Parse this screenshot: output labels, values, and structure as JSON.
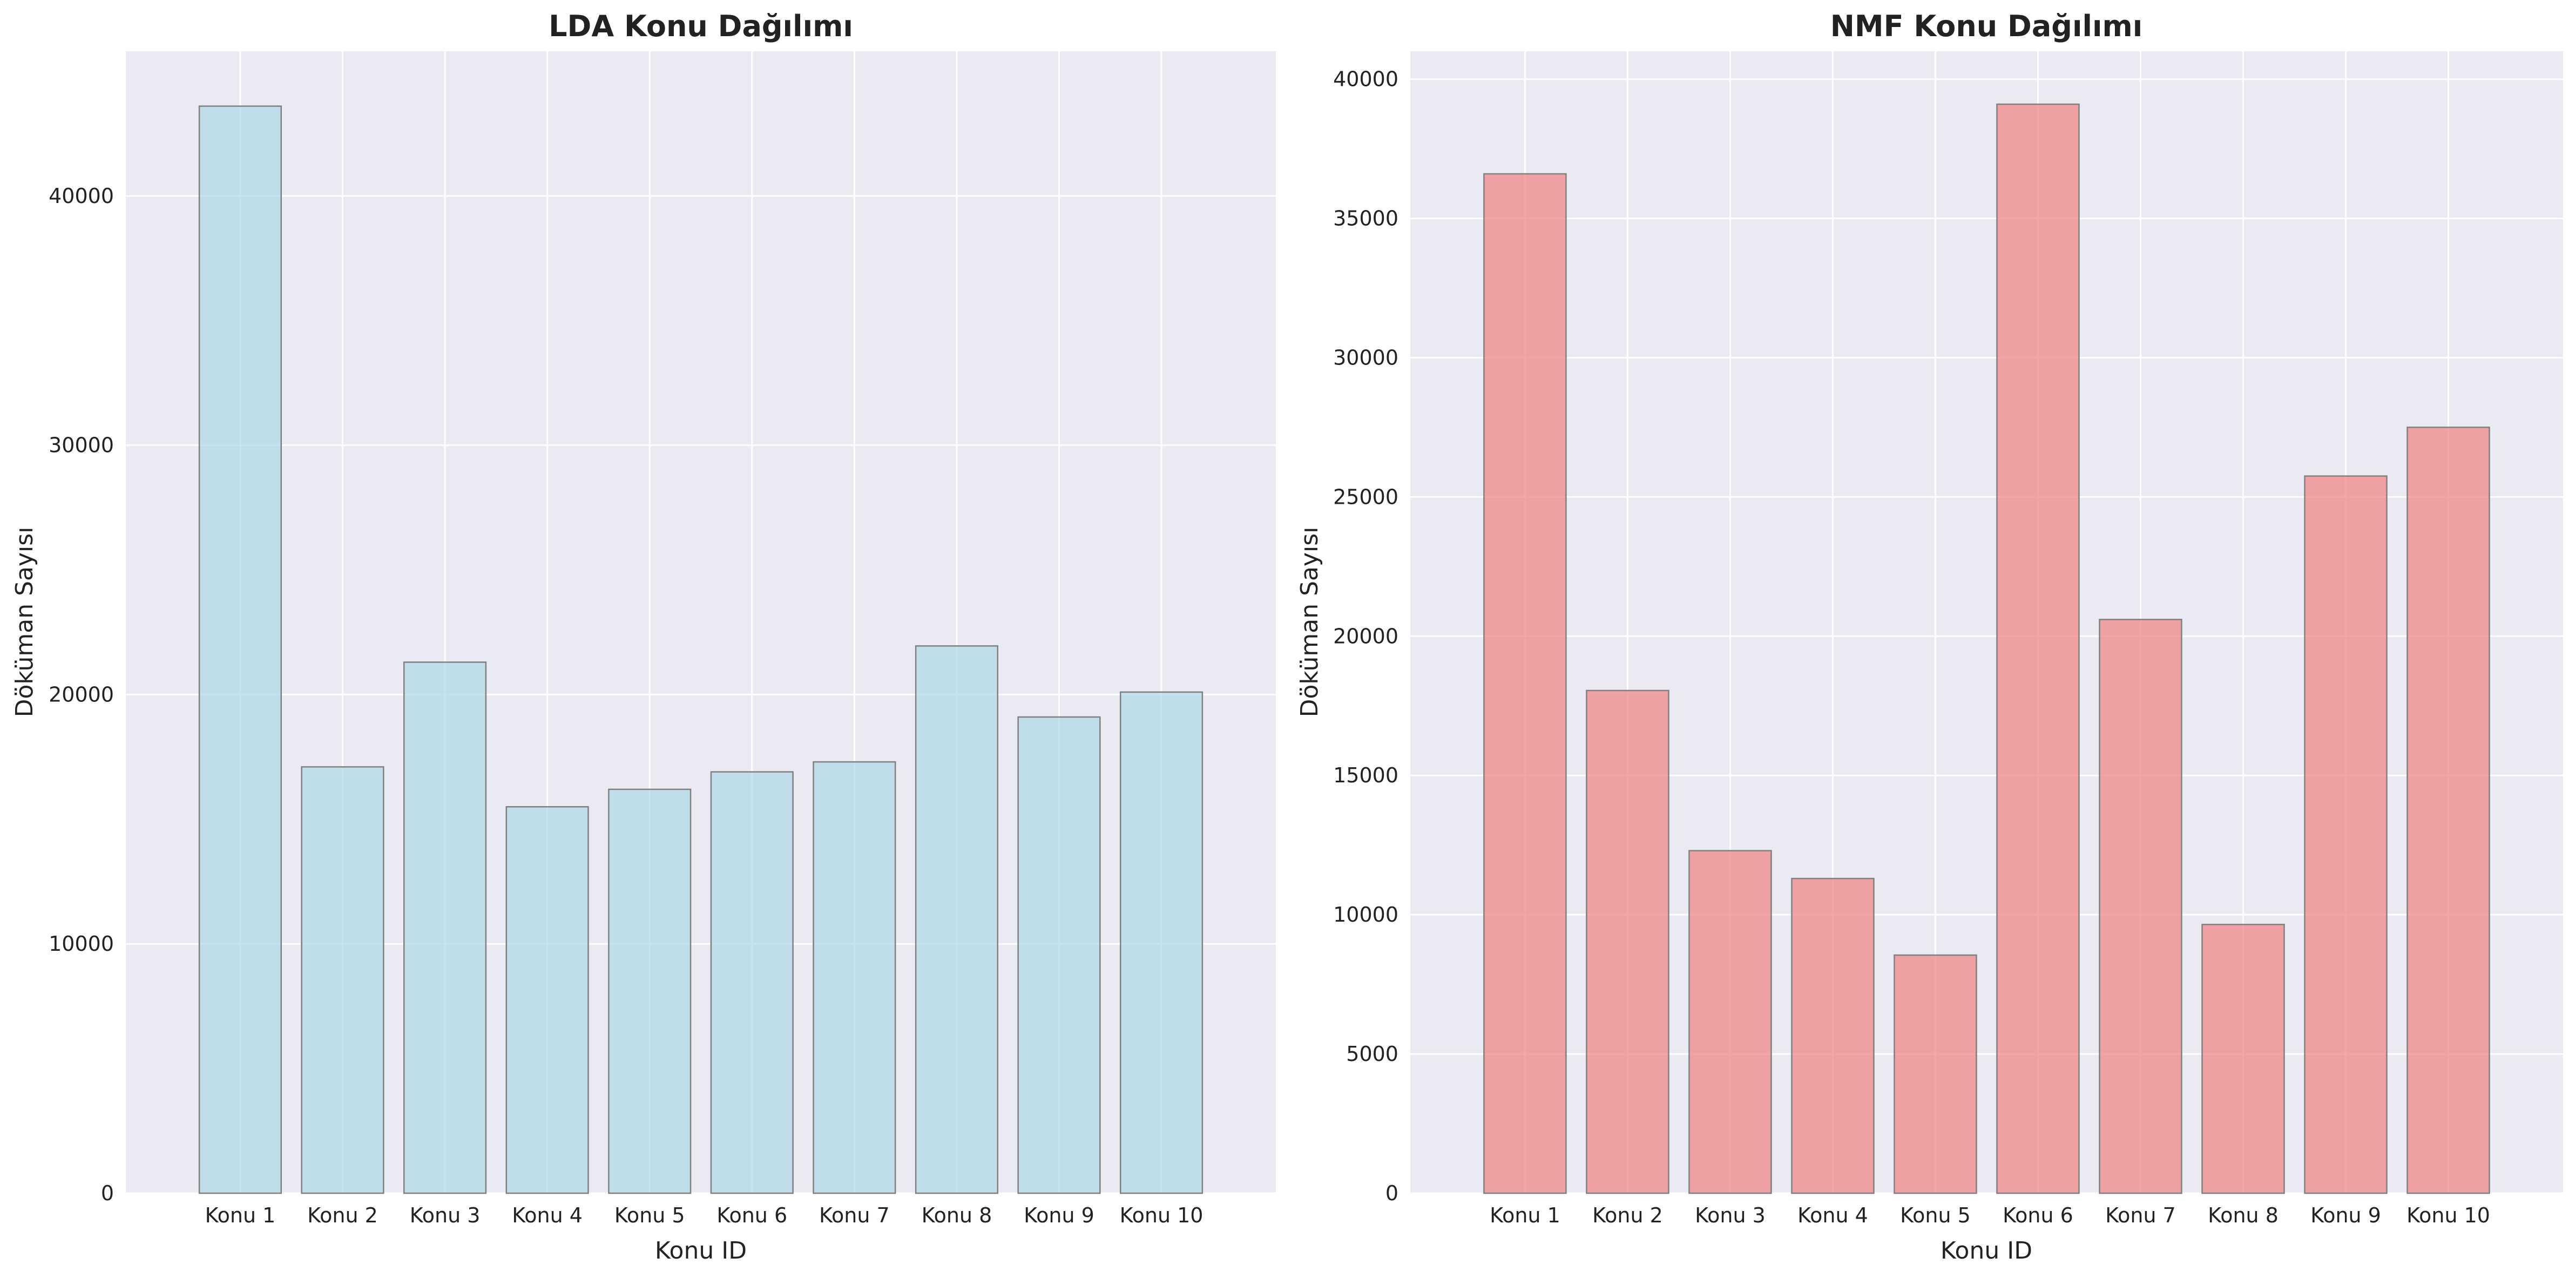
{
  "style": {
    "plot_background": "#EAEAF2",
    "grid_color": "#FFFFFF",
    "text_color": "#222222",
    "bar_edge": "#808080"
  },
  "chart_data": [
    {
      "type": "bar",
      "title": "LDA Konu Dağılımı",
      "xlabel": "Konu ID",
      "ylabel": "Döküman Sayısı",
      "categories": [
        "Konu 1",
        "Konu 2",
        "Konu 3",
        "Konu 4",
        "Konu 5",
        "Konu 6",
        "Konu 7",
        "Konu 8",
        "Konu 9",
        "Konu 10"
      ],
      "values": [
        43600,
        17100,
        21300,
        15500,
        16200,
        16900,
        17300,
        21950,
        19100,
        20100
      ],
      "ylim": [
        0,
        45800
      ],
      "yticks": [
        0,
        10000,
        20000,
        30000,
        40000
      ],
      "bar_color": "#ADD8E6",
      "grid": true
    },
    {
      "type": "bar",
      "title": "NMF Konu Dağılımı",
      "xlabel": "Konu ID",
      "ylabel": "Döküman Sayısı",
      "categories": [
        "Konu 1",
        "Konu 2",
        "Konu 3",
        "Konu 4",
        "Konu 5",
        "Konu 6",
        "Konu 7",
        "Konu 8",
        "Konu 9",
        "Konu 10"
      ],
      "values": [
        36600,
        18050,
        12300,
        11300,
        8550,
        39100,
        20600,
        9650,
        25750,
        27500
      ],
      "ylim": [
        0,
        41000
      ],
      "yticks": [
        0,
        5000,
        10000,
        15000,
        20000,
        25000,
        30000,
        35000,
        40000
      ],
      "bar_color": "#F08080",
      "grid": true
    }
  ]
}
